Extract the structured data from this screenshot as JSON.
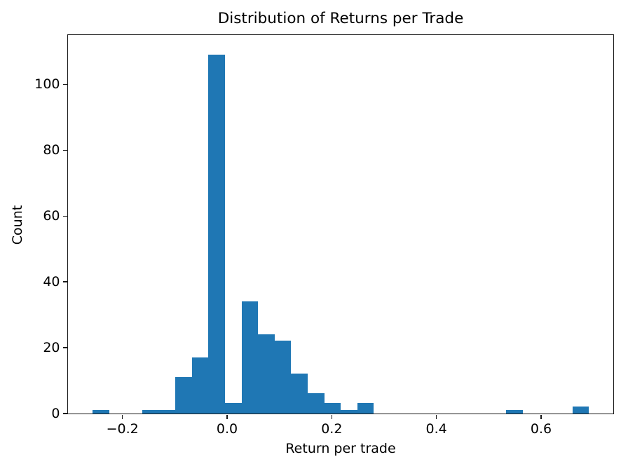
{
  "chart_data": {
    "type": "bar",
    "subtype": "histogram",
    "title": "Distribution of Returns per Trade",
    "xlabel": "Return per trade",
    "ylabel": "Count",
    "bar_color": "#1f77b4",
    "background_color": "#ffffff",
    "spine_color": "#1a1a1a",
    "grid": false,
    "legend": false,
    "bins": 30,
    "bin_start": -0.256,
    "bin_width": 0.0316,
    "counts": [
      1,
      0,
      0,
      1,
      1,
      11,
      17,
      109,
      3,
      34,
      24,
      22,
      12,
      6,
      3,
      1,
      3,
      0,
      0,
      0,
      0,
      0,
      0,
      0,
      0,
      1,
      0,
      0,
      0,
      2
    ],
    "xlim": [
      -0.304,
      0.738
    ],
    "ylim": [
      0,
      115
    ],
    "xticks": {
      "values": [
        -0.2,
        0.0,
        0.2,
        0.4,
        0.6
      ],
      "labels": [
        "−0.2",
        "0.0",
        "0.2",
        "0.4",
        "0.6"
      ]
    },
    "yticks": {
      "values": [
        0,
        20,
        40,
        60,
        80,
        100
      ],
      "labels": [
        "0",
        "20",
        "40",
        "60",
        "80",
        "100"
      ]
    }
  }
}
